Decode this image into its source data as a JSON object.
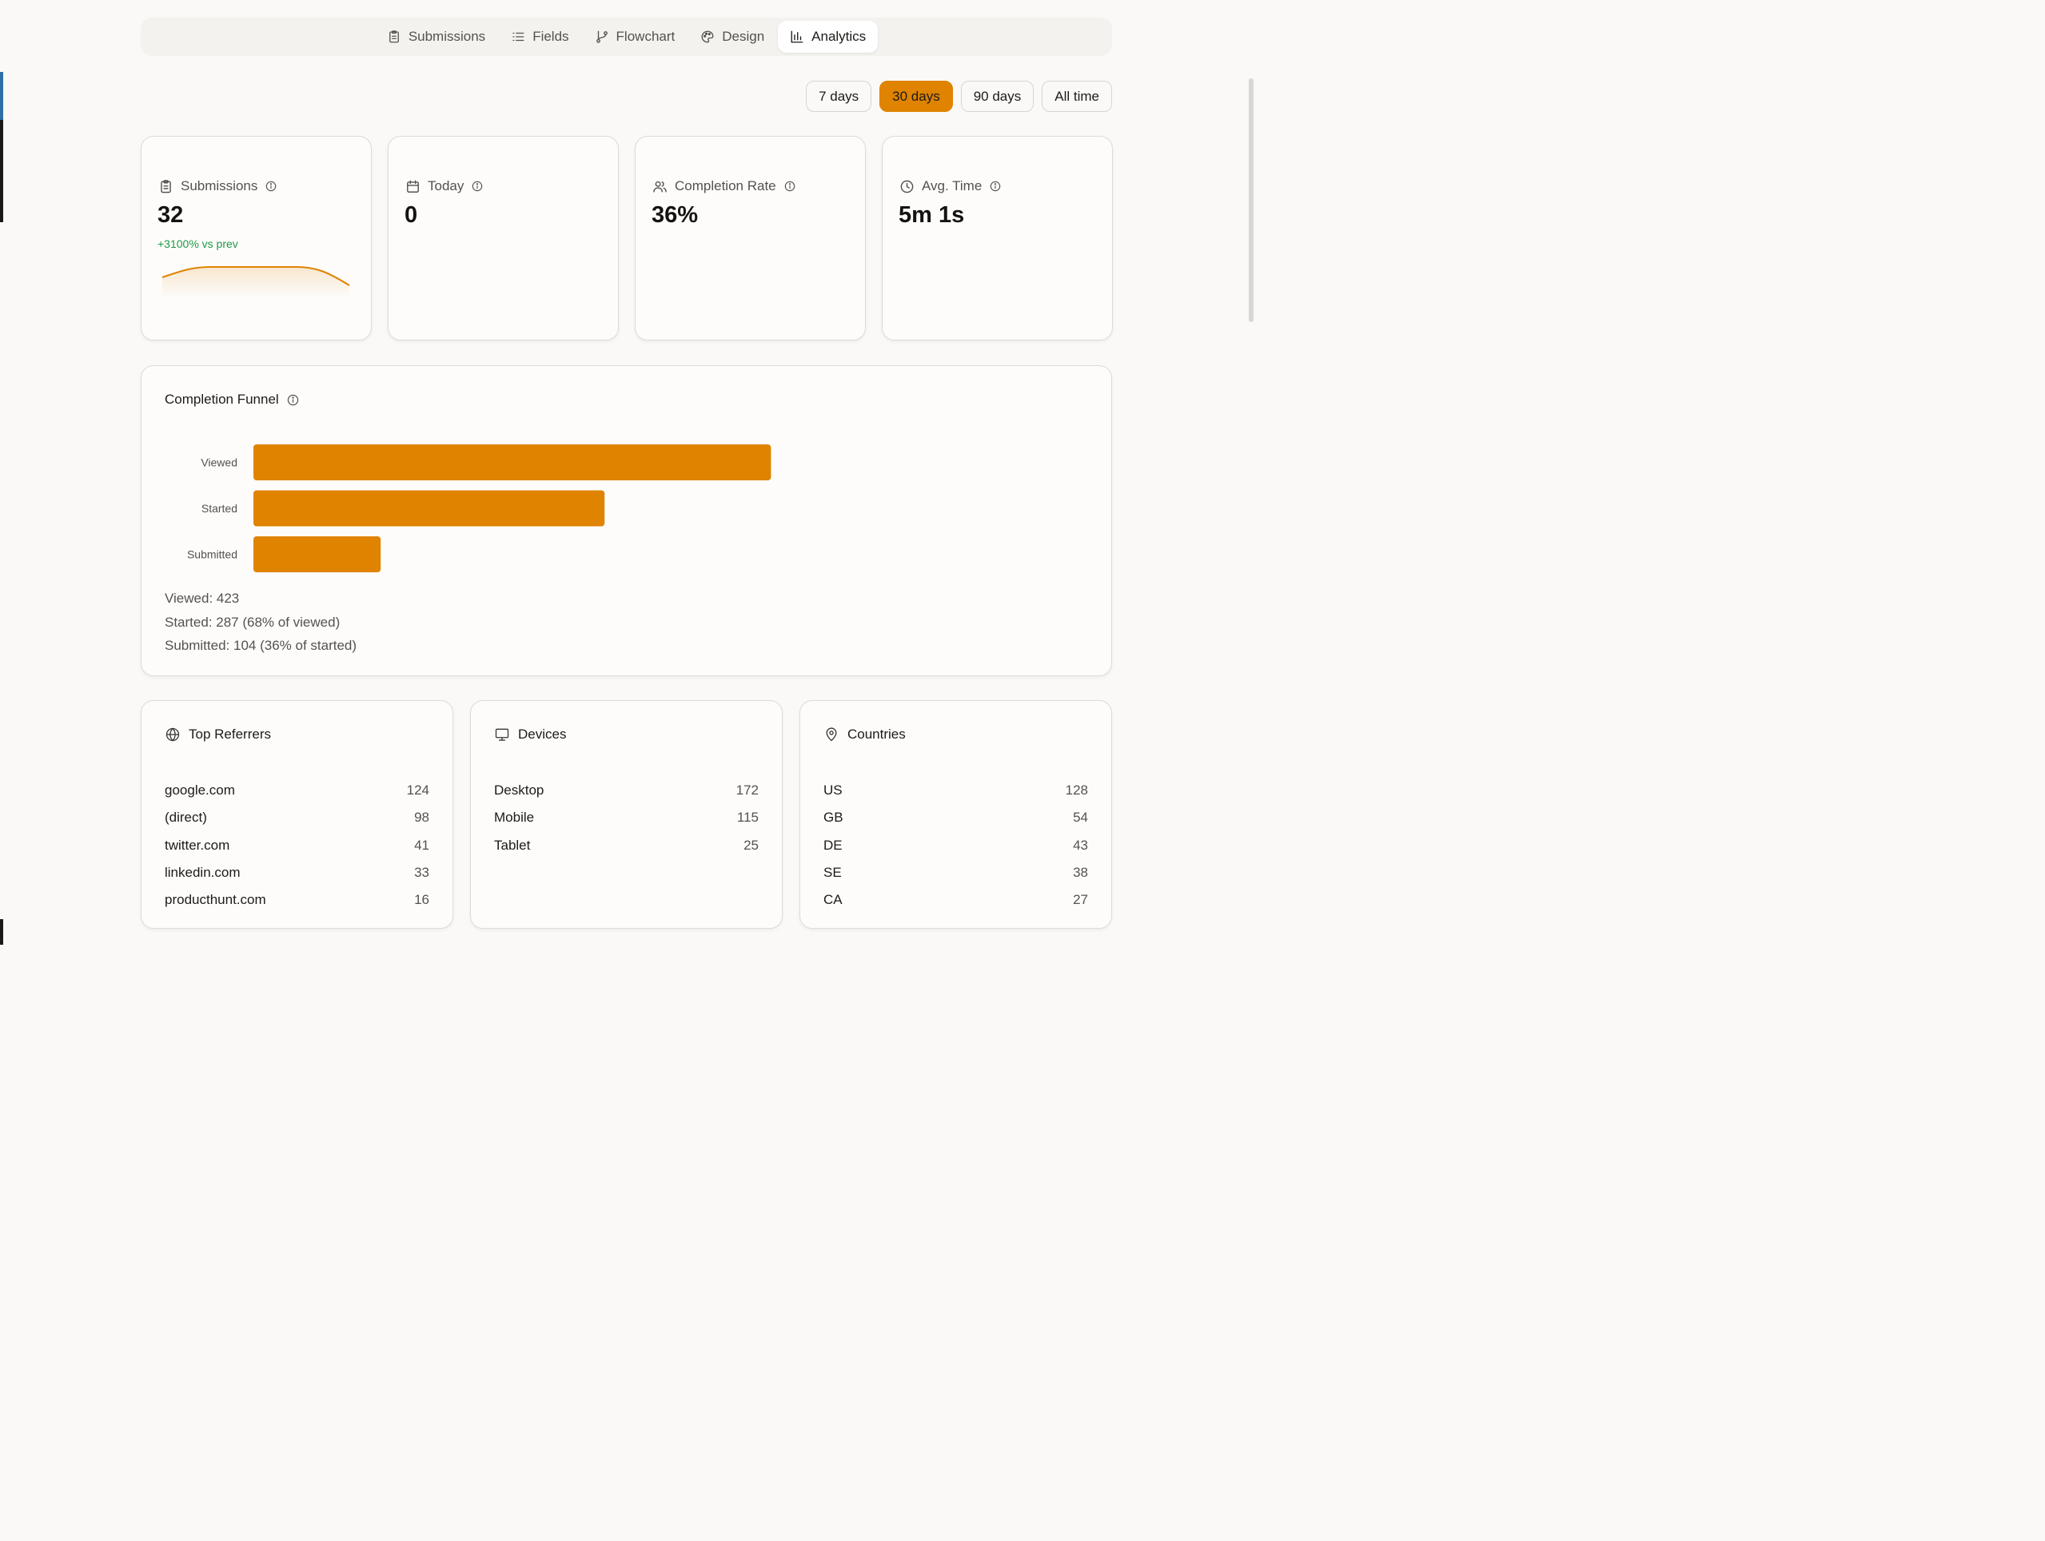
{
  "nav": {
    "tabs": [
      {
        "label": "Submissions",
        "icon": "clipboard-icon",
        "active": false
      },
      {
        "label": "Fields",
        "icon": "list-icon",
        "active": false
      },
      {
        "label": "Flowchart",
        "icon": "git-branch-icon",
        "active": false
      },
      {
        "label": "Design",
        "icon": "palette-icon",
        "active": false
      },
      {
        "label": "Analytics",
        "icon": "bar-chart-icon",
        "active": true
      }
    ]
  },
  "ranges": {
    "options": [
      "7 days",
      "30 days",
      "90 days",
      "All time"
    ],
    "selected": "30 days"
  },
  "colors": {
    "accent": "#df8300",
    "positive": "#1f9a44",
    "muted": "#55524d"
  },
  "stats": [
    {
      "label": "Submissions",
      "icon": "clipboard-icon",
      "value": "32",
      "delta": "+3100% vs prev"
    },
    {
      "label": "Today",
      "icon": "calendar-icon",
      "value": "0"
    },
    {
      "label": "Completion Rate",
      "icon": "users-icon",
      "value": "36%"
    },
    {
      "label": "Avg. Time",
      "icon": "clock-icon",
      "value": "5m 1s"
    }
  ],
  "funnel": {
    "title": "Completion Funnel",
    "summary": [
      "Viewed: 423",
      "Started: 287 (68% of viewed)",
      "Submitted: 104 (36% of started)"
    ]
  },
  "chart_data": {
    "type": "bar",
    "orientation": "horizontal",
    "title": "Completion Funnel",
    "categories": [
      "Viewed",
      "Started",
      "Submitted"
    ],
    "values": [
      423,
      287,
      104
    ],
    "xlim": [
      0,
      690
    ],
    "grid": false
  },
  "referrers": {
    "title": "Top Referrers",
    "rows": [
      {
        "name": "google.com",
        "count": "124"
      },
      {
        "name": "(direct)",
        "count": "98"
      },
      {
        "name": "twitter.com",
        "count": "41"
      },
      {
        "name": "linkedin.com",
        "count": "33"
      },
      {
        "name": "producthunt.com",
        "count": "16"
      }
    ]
  },
  "devices": {
    "title": "Devices",
    "rows": [
      {
        "name": "Desktop",
        "count": "172"
      },
      {
        "name": "Mobile",
        "count": "115"
      },
      {
        "name": "Tablet",
        "count": "25"
      }
    ]
  },
  "countries": {
    "title": "Countries",
    "rows": [
      {
        "name": "US",
        "count": "128"
      },
      {
        "name": "GB",
        "count": "54"
      },
      {
        "name": "DE",
        "count": "43"
      },
      {
        "name": "SE",
        "count": "38"
      },
      {
        "name": "CA",
        "count": "27"
      }
    ]
  }
}
